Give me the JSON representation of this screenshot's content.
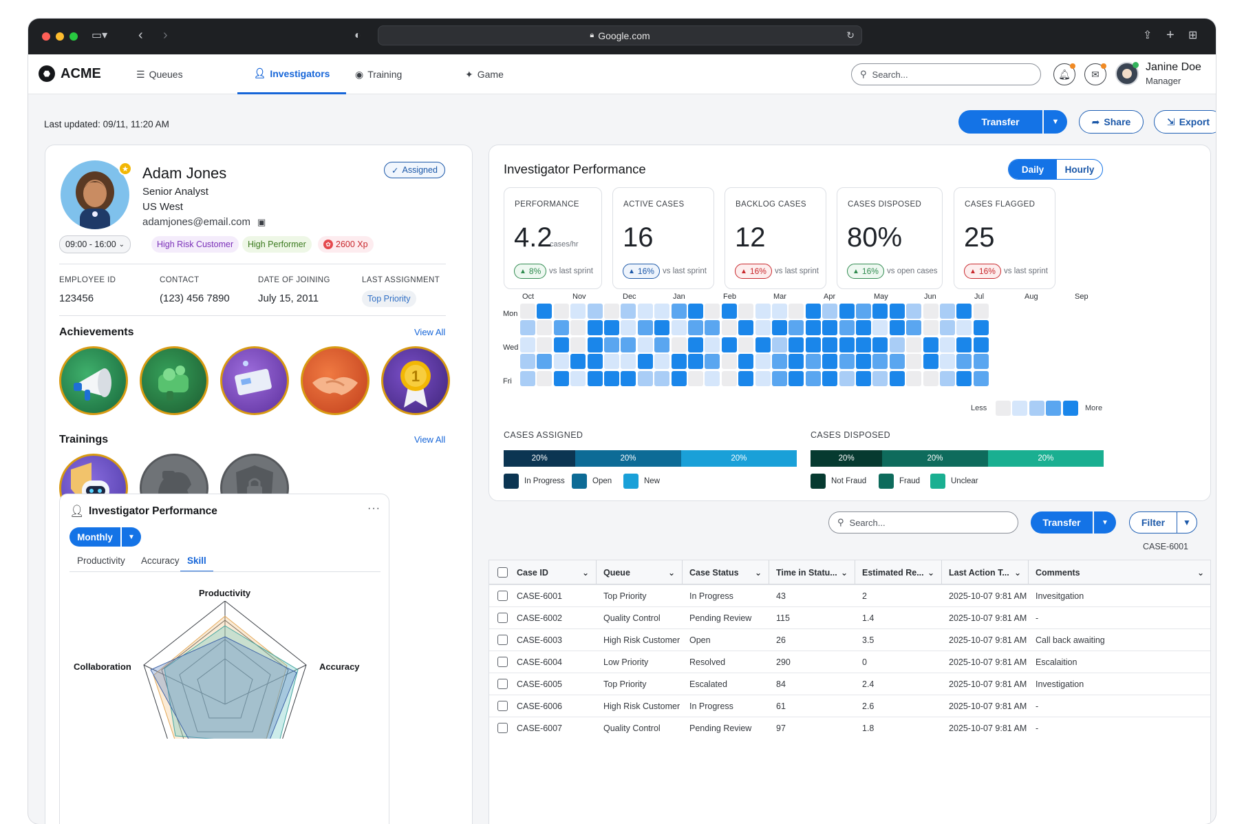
{
  "browser": {
    "url": "Google.com"
  },
  "app": {
    "brand": "ACME"
  },
  "nav": {
    "tabs": [
      {
        "label": "Queues",
        "icon": "list-icon"
      },
      {
        "label": "Investigators",
        "icon": "people-icon",
        "active": true
      },
      {
        "label": "Training",
        "icon": "brain-icon"
      },
      {
        "label": "Game",
        "icon": "puzzle-icon"
      }
    ],
    "search_placeholder": "Search...",
    "user": {
      "name": "Janine Doe",
      "role": "Manager"
    }
  },
  "toolbar": {
    "last_updated": "Last updated: 09/11, 11:20 AM",
    "transfer": "Transfer",
    "share": "Share",
    "export": "Export"
  },
  "profile": {
    "name": "Adam Jones",
    "title": "Senior Analyst",
    "region": "US West",
    "email": "adamjones@email.com",
    "status": "Assigned",
    "shift": "09:00 - 16:00",
    "tags": [
      "High Risk Customer",
      "High Performer",
      "2600 Xp"
    ],
    "fields": [
      {
        "label": "EMPLOYEE ID",
        "value": "123456"
      },
      {
        "label": "CONTACT",
        "value": "(123) 456 7890"
      },
      {
        "label": "DATE OF JOINING",
        "value": "July 15, 2011"
      },
      {
        "label": "LAST ASSIGNMENT",
        "value": "Top Priority"
      }
    ],
    "achievements_title": "Achievements",
    "trainings_title": "Trainings",
    "view_all": "View All"
  },
  "mini_perf": {
    "title": "Investigator Performance",
    "period": "Monthly",
    "tabs": [
      "Productivity",
      "Accuracy",
      "Skill"
    ],
    "active_tab": "Skill",
    "radar_labels": [
      "Productivity",
      "Accuracy",
      "Collaboration"
    ]
  },
  "performance": {
    "title": "Investigator Performance",
    "toggle": [
      "Daily",
      "Hourly"
    ],
    "kpis": [
      {
        "label": "PERFORMANCE",
        "value": "4.2",
        "unit": "cases/hr",
        "delta": "8%",
        "dir": "up",
        "note": "vs last sprint"
      },
      {
        "label": "ACTIVE CASES",
        "value": "16",
        "unit": "",
        "delta": "16%",
        "dir": "upb",
        "note": "vs last sprint"
      },
      {
        "label": "BACKLOG CASES",
        "value": "12",
        "unit": "",
        "delta": "16%",
        "dir": "dn",
        "note": "vs last sprint"
      },
      {
        "label": "CASES DISPOSED",
        "value": "80%",
        "unit": "",
        "delta": "16%",
        "dir": "up",
        "note": "vs open cases"
      },
      {
        "label": "CASES FLAGGED",
        "value": "25",
        "unit": "",
        "delta": "16%",
        "dir": "dn",
        "note": "vs last sprint"
      }
    ],
    "heatmap": {
      "months": [
        "Oct",
        "Nov",
        "Dec",
        "Jan",
        "Feb",
        "Mar",
        "Apr",
        "May",
        "Jun",
        "Jul",
        "Aug",
        "Sep"
      ],
      "days": [
        "Mon",
        "Wed",
        "Fri"
      ],
      "legend_less": "Less",
      "legend_more": "More",
      "levels": [
        [
          0,
          4,
          0,
          1,
          2,
          0,
          2,
          1,
          1,
          3,
          4,
          0,
          4,
          0,
          1,
          1,
          0,
          4,
          2,
          4,
          3,
          4,
          4,
          2,
          0,
          2,
          4,
          0
        ],
        [
          2,
          0,
          3,
          0,
          4,
          4,
          1,
          3,
          4,
          1,
          3,
          3,
          0,
          4,
          1,
          4,
          3,
          4,
          4,
          3,
          4,
          1,
          4,
          3,
          0,
          2,
          1,
          4
        ],
        [
          1,
          0,
          4,
          0,
          4,
          3,
          3,
          1,
          3,
          0,
          4,
          1,
          4,
          0,
          4,
          2,
          4,
          4,
          4,
          4,
          4,
          4,
          2,
          0,
          4,
          1,
          4,
          4
        ],
        [
          2,
          3,
          1,
          4,
          4,
          1,
          1,
          4,
          1,
          4,
          4,
          3,
          0,
          4,
          1,
          3,
          4,
          3,
          4,
          3,
          4,
          3,
          3,
          0,
          4,
          1,
          3,
          3
        ],
        [
          2,
          0,
          4,
          1,
          4,
          4,
          4,
          2,
          2,
          4,
          0,
          1,
          0,
          4,
          1,
          3,
          4,
          3,
          4,
          2,
          4,
          2,
          4,
          0,
          0,
          2,
          4,
          3
        ]
      ]
    },
    "assigned": {
      "title": "CASES ASSIGNED",
      "segments": [
        {
          "label": "20%",
          "value": 20
        },
        {
          "label": "20%",
          "value": 20
        },
        {
          "label": "20%",
          "value": 20
        }
      ],
      "legend": [
        "In Progress",
        "Open",
        "New"
      ],
      "colors": [
        "#0b3552",
        "#0d6b96",
        "#1aa0d8"
      ]
    },
    "disposed": {
      "title": "CASES DISPOSED",
      "segments": [
        {
          "label": "20%",
          "value": 20
        },
        {
          "label": "20%",
          "value": 20
        },
        {
          "label": "20%",
          "value": 20
        }
      ],
      "legend": [
        "Not Fraud",
        "Fraud",
        "Unclear"
      ],
      "colors": [
        "#063a30",
        "#0e6b5c",
        "#1aaf91"
      ]
    }
  },
  "cases": {
    "search_placeholder": "Search...",
    "transfer": "Transfer",
    "filter": "Filter",
    "selected": "CASE-6001",
    "columns": [
      "Case ID",
      "Queue",
      "Case Status",
      "Time in Statu...",
      "Estimated Re...",
      "Last Action T...",
      "Comments"
    ],
    "rows": [
      [
        "CASE-6001",
        "Top Priority",
        "In Progress",
        "43",
        "2",
        "2025-10-07 9:81 AM",
        "Invesitgation"
      ],
      [
        "CASE-6002",
        "Quality Control",
        "Pending Review",
        "115",
        "1.4",
        "2025-10-07 9:81 AM",
        "-"
      ],
      [
        "CASE-6003",
        "High Risk Customer",
        "Open",
        "26",
        "3.5",
        "2025-10-07 9:81 AM",
        "Call back awaiting"
      ],
      [
        "CASE-6004",
        "Low Priority",
        "Resolved",
        "290",
        "0",
        "2025-10-07 9:81 AM",
        "Escalaition"
      ],
      [
        "CASE-6005",
        "Top Priority",
        "Escalated",
        "84",
        "2.4",
        "2025-10-07 9:81 AM",
        "Investigation"
      ],
      [
        "CASE-6006",
        "High Risk Customer",
        "In Progress",
        "61",
        "2.6",
        "2025-10-07 9:81 AM",
        "-"
      ],
      [
        "CASE-6007",
        "Quality Control",
        "Pending Review",
        "97",
        "1.8",
        "2025-10-07 9:81 AM",
        "-"
      ]
    ]
  }
}
